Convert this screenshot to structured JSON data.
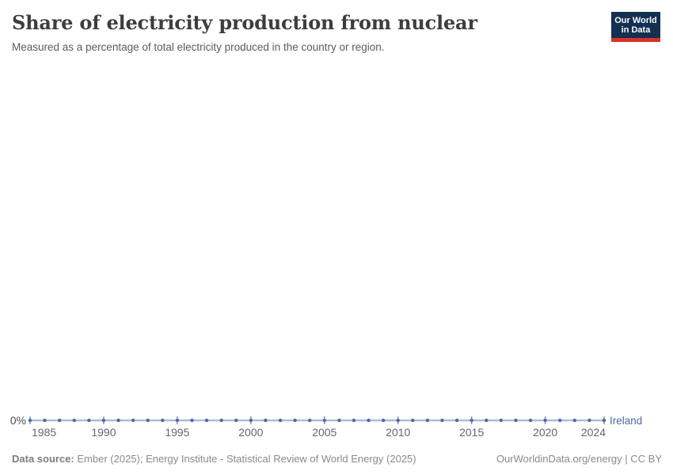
{
  "header": {
    "title": "Share of electricity production from nuclear",
    "subtitle": "Measured as a percentage of total electricity produced in the country or region.",
    "logo": {
      "line1": "Our World",
      "line2": "in Data",
      "bg_color": "#132F51",
      "bar_color": "#D7332C"
    }
  },
  "chart_data": {
    "type": "line",
    "title": "Share of electricity production from nuclear",
    "x": [
      1985,
      1986,
      1987,
      1988,
      1989,
      1990,
      1991,
      1992,
      1993,
      1994,
      1995,
      1996,
      1997,
      1998,
      1999,
      2000,
      2001,
      2002,
      2003,
      2004,
      2005,
      2006,
      2007,
      2008,
      2009,
      2010,
      2011,
      2012,
      2013,
      2014,
      2015,
      2016,
      2017,
      2018,
      2019,
      2020,
      2021,
      2022,
      2023,
      2024
    ],
    "series": [
      {
        "name": "Ireland",
        "color": "#4C6A9C",
        "values": [
          0,
          0,
          0,
          0,
          0,
          0,
          0,
          0,
          0,
          0,
          0,
          0,
          0,
          0,
          0,
          0,
          0,
          0,
          0,
          0,
          0,
          0,
          0,
          0,
          0,
          0,
          0,
          0,
          0,
          0,
          0,
          0,
          0,
          0,
          0,
          0,
          0,
          0,
          0,
          0
        ]
      }
    ],
    "x_ticks": [
      1985,
      1990,
      1995,
      2000,
      2005,
      2010,
      2015,
      2020,
      2024
    ],
    "y_axis": {
      "ticks": [
        {
          "value": 0,
          "label": "0%"
        }
      ],
      "unit": "%"
    },
    "xlabel": "",
    "ylabel": "",
    "grid": false,
    "legend_position": "line-end-label",
    "axis_label_color": "#666666",
    "y_label_color": "#4d4d4d"
  },
  "footer": {
    "source_label": "Data source:",
    "source_text": "Ember (2025); Energy Institute - Statistical Review of World Energy (2025)",
    "credit": "OurWorldinData.org/energy | CC BY"
  }
}
